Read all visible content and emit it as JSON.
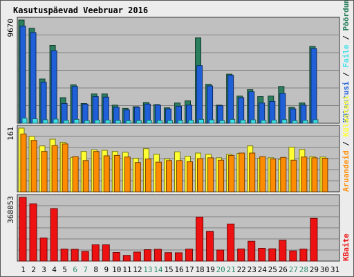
{
  "chart_data": {
    "type": "bar",
    "title": "Kasutuspäevad Veebruar 2016",
    "categories": [
      "1",
      "2",
      "3",
      "4",
      "5",
      "6",
      "7",
      "8",
      "9",
      "10",
      "11",
      "12",
      "13",
      "14",
      "15",
      "16",
      "17",
      "18",
      "19",
      "20",
      "21",
      "22",
      "23",
      "24",
      "25",
      "26",
      "27",
      "28",
      "29",
      "30",
      "31"
    ],
    "weekend_days": [
      "6",
      "7",
      "13",
      "14",
      "20",
      "21",
      "27",
      "28"
    ],
    "grid": true,
    "colors": {
      "title": "#0000cc",
      "weekend_tick": "#2f8f6f",
      "weekday_tick": "#000000",
      "pages": "#2a7e5e",
      "hits": "#1f5fd8",
      "files": "#3ee0e8",
      "visits": "#ffff33",
      "sites": "#ff8c00",
      "kbytes": "#ee1111",
      "plot_bg": "#c0c0c0",
      "gridline": "#7f7f7f"
    },
    "panels": {
      "top": {
        "ymax_label": "9670",
        "ylim": [
          0,
          9670
        ],
        "legend_text": {
          "pages": "Pöördumisi",
          "sep1": " / ",
          "files": "Faile",
          "sep2": " / ",
          "hits": "Külastusi"
        },
        "series": [
          {
            "key": "pages",
            "values": [
              9670,
              8900,
              4150,
              7300,
              2400,
              3600,
              1850,
              2750,
              2750,
              1700,
              1400,
              1550,
              1950,
              1750,
              1450,
              1900,
              2100,
              8000,
              3650,
              1700,
              4600,
              2550,
              3150,
              2500,
              2550,
              3450,
              1500,
              1900,
              7200,
              null,
              null
            ]
          },
          {
            "key": "hits",
            "values": [
              9100,
              8500,
              3850,
              6800,
              1850,
              3450,
              1800,
              2500,
              2450,
              1500,
              1250,
              1500,
              1800,
              1700,
              1350,
              1600,
              1700,
              5400,
              3500,
              1650,
              4500,
              2400,
              2950,
              1900,
              2050,
              2800,
              1350,
              1700,
              7000,
              null,
              null
            ]
          },
          {
            "key": "files",
            "values": [
              480,
              420,
              330,
              390,
              270,
              360,
              250,
              300,
              300,
              260,
              240,
              250,
              270,
              260,
              250,
              260,
              280,
              360,
              320,
              250,
              360,
              300,
              320,
              280,
              300,
              340,
              250,
              270,
              330,
              null,
              null
            ]
          }
        ]
      },
      "middle": {
        "ymax_label": "161",
        "ylim": [
          0,
          161
        ],
        "legend_text": {
          "sites": "Aruandeid",
          "sep1": " / ",
          "visits": "Külastusi"
        },
        "series": [
          {
            "key": "visits",
            "values": [
              161,
              140,
              116,
              133,
              125,
              87,
              102,
              106,
              105,
              102,
              100,
              85,
              109,
              95,
              83,
              101,
              90,
              98,
              95,
              86,
              95,
              97,
              116,
              85,
              86,
              82,
              113,
              107,
              89,
              88,
              null
            ]
          },
          {
            "key": "sites",
            "values": [
              146,
              130,
              102,
              117,
              121,
              89,
              79,
              102,
              91,
              92,
              88,
              74,
              83,
              75,
              79,
              79,
              76,
              84,
              86,
              80,
              92,
              98,
              98,
              89,
              83,
              87,
              80,
              88,
              86,
              85,
              null
            ]
          }
        ]
      },
      "bottom": {
        "ymax_label": "368053",
        "ylim": [
          0,
          368053
        ],
        "legend_text": {
          "kbytes": "KBaite"
        },
        "series": [
          {
            "key": "kbytes",
            "values": [
              368053,
              331000,
              133000,
              303000,
              69000,
              68000,
              56000,
              94000,
              94000,
              50000,
              33000,
              52000,
              66000,
              68000,
              49000,
              48000,
              69000,
              254000,
              171000,
              64000,
              214000,
              70000,
              115000,
              74000,
              71000,
              120000,
              59000,
              69000,
              247000,
              null,
              null
            ]
          }
        ]
      }
    }
  }
}
